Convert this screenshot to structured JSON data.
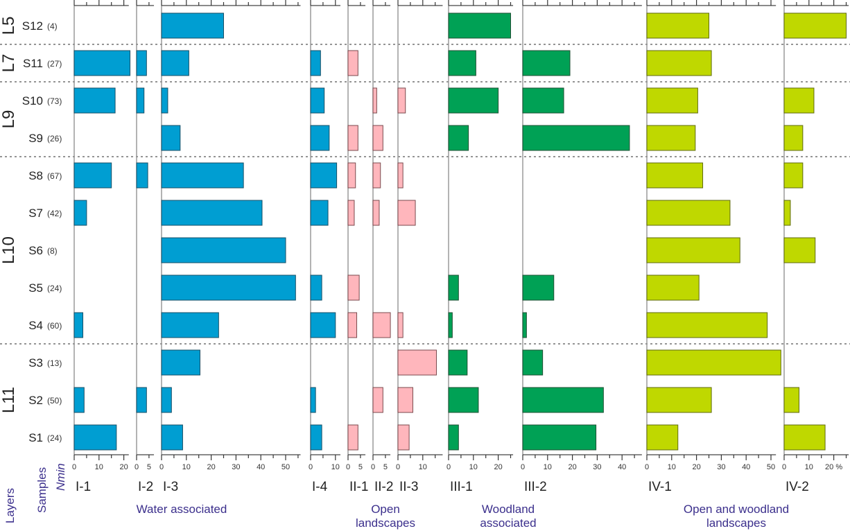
{
  "chart_data": {
    "type": "bar",
    "orientation": "horizontal",
    "title": "",
    "unit": "%",
    "column_headers": {
      "layers": "Layers",
      "samples": "Samples",
      "nmin": "Nmin"
    },
    "samples": [
      {
        "id": "S12",
        "nmin": "(4)",
        "layer": "L5"
      },
      {
        "id": "S11",
        "nmin": "(27)",
        "layer": "L7"
      },
      {
        "id": "S10",
        "nmin": "(73)",
        "layer": "L9"
      },
      {
        "id": "S9",
        "nmin": "(26)",
        "layer": "L9"
      },
      {
        "id": "S8",
        "nmin": "(67)",
        "layer": "L10"
      },
      {
        "id": "S7",
        "nmin": "(42)",
        "layer": "L10"
      },
      {
        "id": "S6",
        "nmin": "(8)",
        "layer": "L10"
      },
      {
        "id": "S5",
        "nmin": "(24)",
        "layer": "L10"
      },
      {
        "id": "S4",
        "nmin": "(60)",
        "layer": "L10"
      },
      {
        "id": "S3",
        "nmin": "(13)",
        "layer": "L11"
      },
      {
        "id": "S2",
        "nmin": "(50)",
        "layer": "L11"
      },
      {
        "id": "S1",
        "nmin": "(24)",
        "layer": "L11"
      }
    ],
    "layers": [
      {
        "name": "L5",
        "first": 0,
        "last": 0
      },
      {
        "name": "L7",
        "first": 1,
        "last": 1
      },
      {
        "name": "L9",
        "first": 2,
        "last": 3
      },
      {
        "name": "L10",
        "first": 4,
        "last": 8
      },
      {
        "name": "L11",
        "first": 9,
        "last": 11
      }
    ],
    "groups": [
      {
        "name": "Water associated",
        "color": "#009ed2",
        "panels": [
          "I-1",
          "I-2",
          "I-3",
          "I-4"
        ]
      },
      {
        "name": "Open landscapes",
        "color": "#ffb6bc",
        "panels": [
          "II-1",
          "II-2",
          "II-3"
        ]
      },
      {
        "name": "Woodland associated",
        "color": "#00a155",
        "panels": [
          "III-1",
          "III-2"
        ]
      },
      {
        "name": "Open and woodland landscapes",
        "color": "#bfd800",
        "panels": [
          "IV-1",
          "IV-2"
        ]
      }
    ],
    "series": [
      {
        "name": "I-1",
        "group": "Water associated",
        "color": "#009ed2",
        "xlim": [
          0,
          22
        ],
        "ticks": [
          0,
          10,
          20
        ],
        "values": [
          0,
          22.5,
          16.5,
          0,
          15,
          5,
          0,
          0,
          3.5,
          0,
          4,
          17
        ]
      },
      {
        "name": "I-2",
        "group": "Water associated",
        "color": "#009ed2",
        "xlim": [
          0,
          7
        ],
        "ticks": [
          0,
          5
        ],
        "values": [
          0,
          4,
          3,
          0,
          4.5,
          0,
          0,
          0,
          0,
          0,
          4,
          0
        ]
      },
      {
        "name": "I-3",
        "group": "Water associated",
        "color": "#009ed2",
        "xlim": [
          0,
          56
        ],
        "ticks": [
          0,
          10,
          20,
          30,
          40,
          50
        ],
        "values": [
          25,
          11,
          2.5,
          7.5,
          33,
          40.5,
          50,
          54,
          23,
          15.5,
          4,
          8.5
        ]
      },
      {
        "name": "I-4",
        "group": "Water associated",
        "color": "#009ed2",
        "xlim": [
          0,
          12
        ],
        "ticks": [
          0,
          10
        ],
        "values": [
          0,
          4,
          5.5,
          7.5,
          10.5,
          7,
          0,
          4.5,
          10,
          0,
          2,
          4.5
        ]
      },
      {
        "name": "II-1",
        "group": "Open landscapes",
        "color": "#ffb6bc",
        "xlim": [
          0,
          7
        ],
        "ticks": [
          0,
          5
        ],
        "values": [
          0,
          4,
          0,
          4,
          3,
          2.5,
          0,
          4.5,
          3.5,
          0,
          0,
          4
        ]
      },
      {
        "name": "II-2",
        "group": "Open landscapes",
        "color": "#ffb6bc",
        "xlim": [
          0,
          7
        ],
        "ticks": [
          0,
          5
        ],
        "values": [
          0,
          0,
          1.5,
          4,
          3,
          2.5,
          0,
          0,
          7,
          0,
          4,
          0
        ]
      },
      {
        "name": "II-3",
        "group": "Open landscapes",
        "color": "#ffb6bc",
        "xlim": [
          0,
          18
        ],
        "ticks": [
          0,
          10
        ],
        "values": [
          0,
          0,
          3,
          0,
          2,
          7,
          0,
          0,
          2,
          15.5,
          6,
          4.5
        ]
      },
      {
        "name": "III-1",
        "group": "Woodland associated",
        "color": "#00a155",
        "xlim": [
          0,
          26
        ],
        "ticks": [
          0,
          10,
          20
        ],
        "values": [
          25,
          11,
          20,
          8,
          0,
          0,
          0,
          4,
          1.5,
          7.5,
          12,
          4
        ]
      },
      {
        "name": "III-2",
        "group": "Woodland associated",
        "color": "#00a155",
        "xlim": [
          0,
          48
        ],
        "ticks": [
          0,
          10,
          20,
          30,
          40
        ],
        "values": [
          0,
          19,
          16.5,
          43,
          0,
          0,
          0,
          12.5,
          1.5,
          8,
          32.5,
          29.5
        ]
      },
      {
        "name": "IV-1",
        "group": "Open and woodland landscapes",
        "color": "#bfd800",
        "xlim": [
          0,
          52
        ],
        "ticks": [
          0,
          10,
          20,
          30,
          40,
          50
        ],
        "values": [
          25,
          26,
          20.5,
          19.5,
          22.5,
          33.5,
          37.5,
          21,
          48.5,
          54,
          26,
          12.5
        ]
      },
      {
        "name": "IV-2",
        "group": "Open and woodland landscapes",
        "color": "#bfd800",
        "xlim": [
          0,
          26
        ],
        "ticks": [
          0,
          10,
          20
        ],
        "values": [
          25,
          0,
          12,
          7.5,
          7.5,
          2.5,
          12.5,
          0,
          0,
          0,
          6,
          16.5
        ]
      }
    ],
    "last_tick_suffix": "%",
    "grid": false,
    "legend": "none"
  }
}
